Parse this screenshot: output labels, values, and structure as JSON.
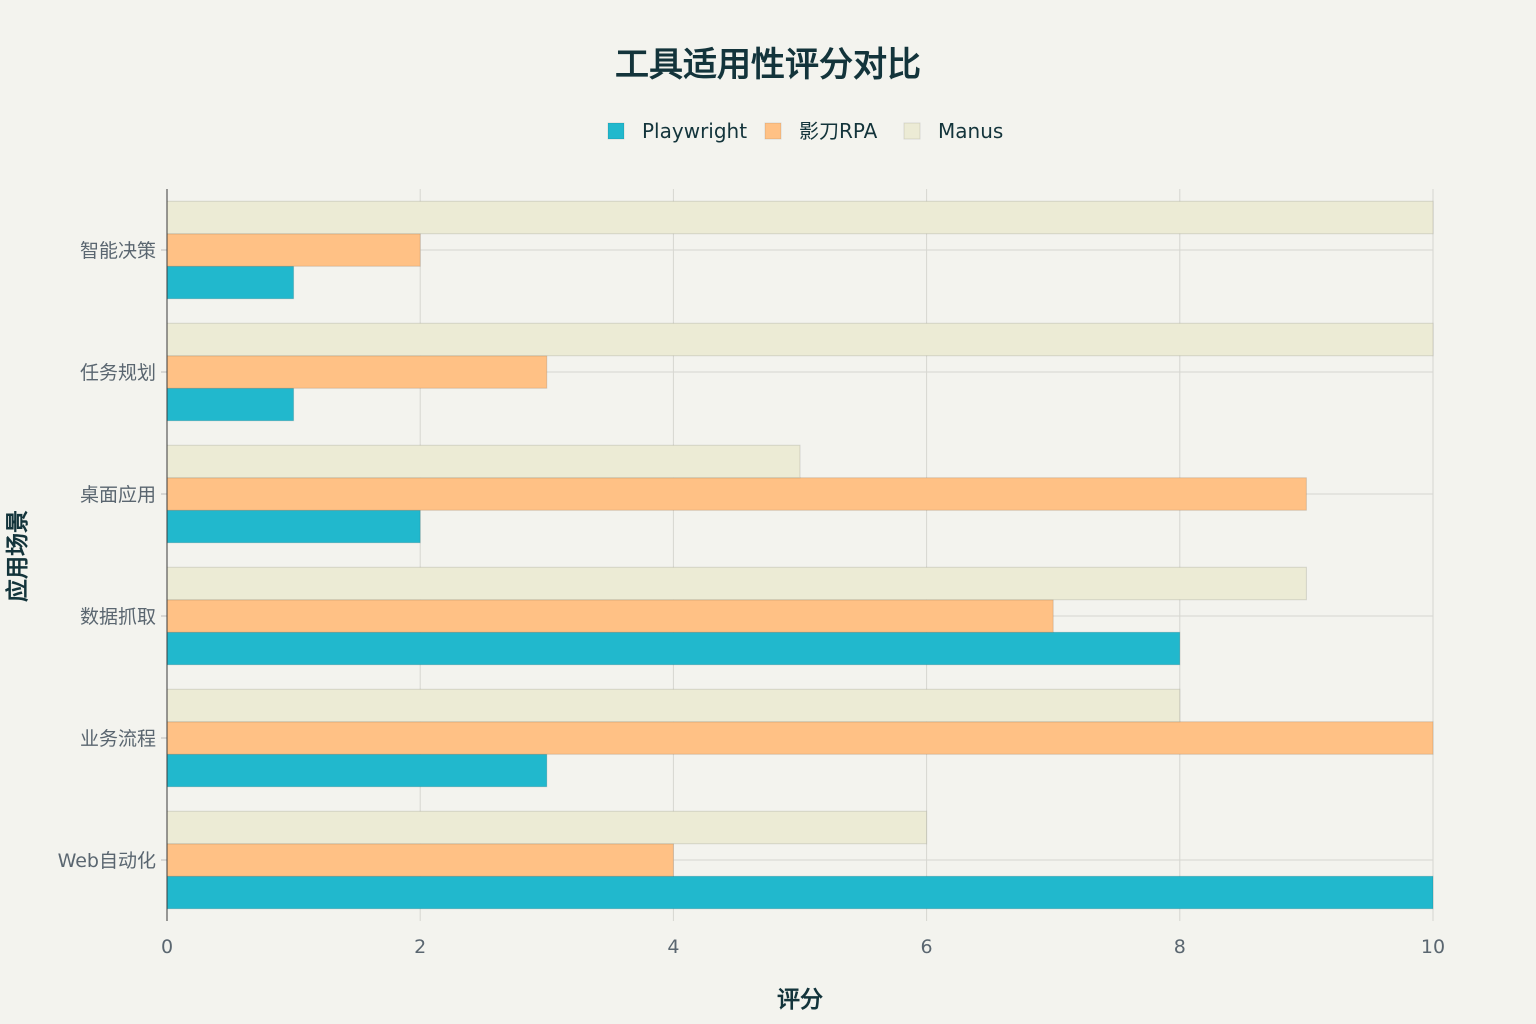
{
  "chart_data": {
    "type": "bar",
    "orientation": "horizontal",
    "title": "工具适用性评分对比",
    "xlabel": "评分",
    "ylabel": "应用场景",
    "categories": [
      "Web自动化",
      "业务流程",
      "数据抓取",
      "桌面应用",
      "任务规划",
      "智能决策"
    ],
    "series": [
      {
        "name": "Playwright",
        "color": "#21b8cd",
        "values": [
          10,
          3,
          8,
          2,
          1,
          1
        ]
      },
      {
        "name": "影刀RPA",
        "color": "#ffc185",
        "values": [
          4,
          10,
          7,
          9,
          3,
          2
        ]
      },
      {
        "name": "Manus",
        "color": "#ecebd5",
        "values": [
          6,
          8,
          9,
          5,
          10,
          10
        ]
      }
    ],
    "xlim": [
      0,
      10
    ],
    "xticks": [
      0,
      2,
      4,
      6,
      8,
      10
    ],
    "grid": true,
    "legend": "top-center"
  }
}
